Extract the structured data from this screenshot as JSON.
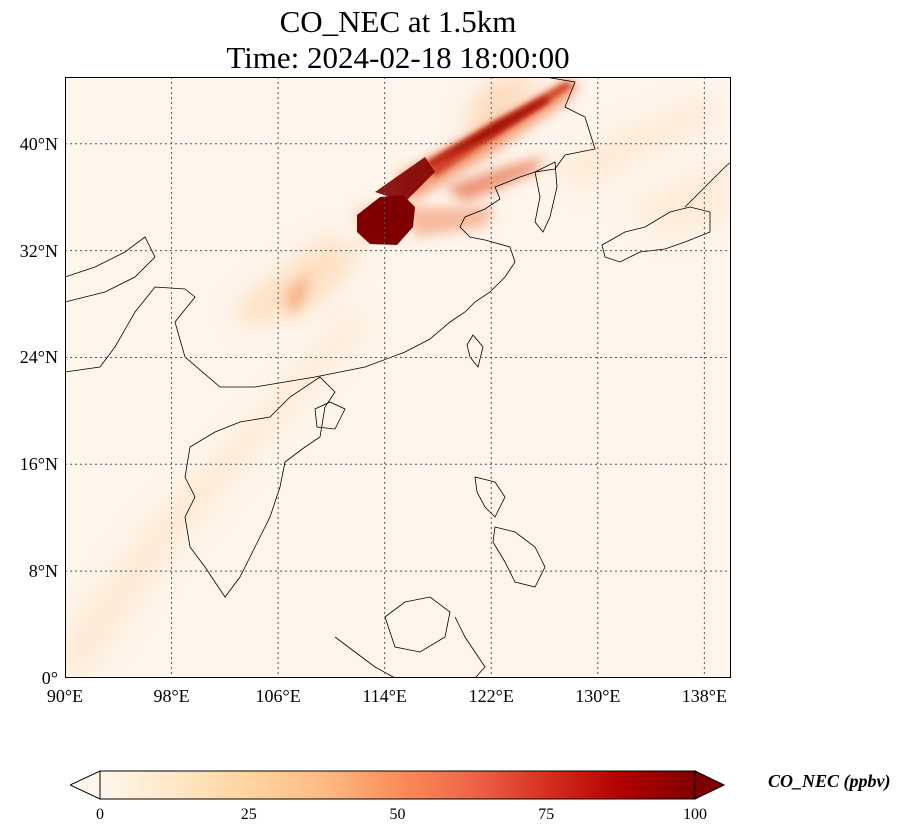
{
  "title_line1": "CO_NEC at 1.5km",
  "title_line2": "Time: 2024-02-18 18:00:00",
  "map": {
    "lon_range": [
      90,
      140
    ],
    "lat_range": [
      0,
      45
    ],
    "lat_ticks": [
      {
        "value": 40,
        "label": "40°N"
      },
      {
        "value": 32,
        "label": "32°N"
      },
      {
        "value": 24,
        "label": "24°N"
      },
      {
        "value": 16,
        "label": "16°N"
      },
      {
        "value": 8,
        "label": "8°N"
      },
      {
        "value": 0,
        "label": "0°"
      }
    ],
    "lon_ticks": [
      {
        "value": 90,
        "label": "90°E"
      },
      {
        "value": 98,
        "label": "98°E"
      },
      {
        "value": 106,
        "label": "106°E"
      },
      {
        "value": 114,
        "label": "114°E"
      },
      {
        "value": 122,
        "label": "122°E"
      },
      {
        "value": 130,
        "label": "130°E"
      },
      {
        "value": 138,
        "label": "138°E"
      }
    ],
    "gridlines": true,
    "field_background": "#fff5eb",
    "coastline_color": "#000000"
  },
  "colorbar": {
    "label": "CO_NEC (ppbv)",
    "min": 0,
    "max": 100,
    "extend": "both",
    "ticks": [
      "0",
      "25",
      "50",
      "75",
      "100"
    ],
    "colormap": "OrRd",
    "colors": [
      "#fff7ec",
      "#fee8c8",
      "#fdd49e",
      "#fdbb84",
      "#fc8d59",
      "#ef6548",
      "#d7301f",
      "#b30000",
      "#7f0000"
    ]
  }
}
